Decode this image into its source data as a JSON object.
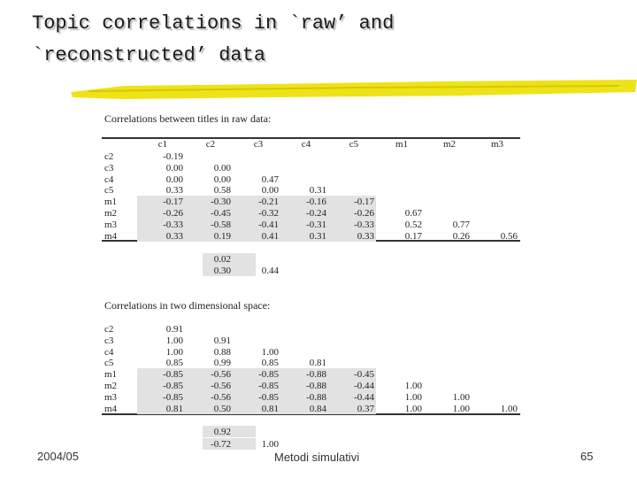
{
  "title": [
    "Topic correlations in `raw’ and",
    "`reconstructed’ data"
  ],
  "tables": [
    {
      "caption": "Correlations between titles in raw data:",
      "header": [
        "c1",
        "c2",
        "c3",
        "c4",
        "c5",
        "m1",
        "m2",
        "m3"
      ],
      "rows": [
        {
          "label": "c2",
          "cells": [
            "-0.19"
          ]
        },
        {
          "label": "c3",
          "cells": [
            "0.00",
            "0.00"
          ]
        },
        {
          "label": "c4",
          "cells": [
            "0.00",
            "0.00",
            "0.47"
          ]
        },
        {
          "label": "c5",
          "cells": [
            "0.33",
            "0.58",
            "0.00",
            "0.31"
          ]
        },
        {
          "label": "m1",
          "cells": [
            "-0.17",
            "-0.30",
            "-0.21",
            "-0.16",
            "-0.17"
          ]
        },
        {
          "label": "m2",
          "cells": [
            "-0.26",
            "-0.45",
            "-0.32",
            "-0.24",
            "-0.26",
            "0.67"
          ]
        },
        {
          "label": "m3",
          "cells": [
            "-0.33",
            "-0.58",
            "-0.41",
            "-0.31",
            "-0.33",
            "0.52",
            "0.77"
          ]
        },
        {
          "label": "m4",
          "cells": [
            "0.33",
            "0.19",
            "0.41",
            "0.31",
            "0.33",
            "0.17",
            "0.26",
            "0.56"
          ]
        }
      ],
      "extra": [
        [
          "0.02"
        ],
        [
          "0.30",
          "0.44"
        ]
      ]
    },
    {
      "caption": "Correlations in two dimensional space:",
      "header": [],
      "rows": [
        {
          "label": "c2",
          "cells": [
            "0.91"
          ]
        },
        {
          "label": "c3",
          "cells": [
            "1.00",
            "0.91"
          ]
        },
        {
          "label": "c4",
          "cells": [
            "1.00",
            "0.88",
            "1.00"
          ]
        },
        {
          "label": "c5",
          "cells": [
            "0.85",
            "0.99",
            "0.85",
            "0.81"
          ]
        },
        {
          "label": "m1",
          "cells": [
            "-0.85",
            "-0.56",
            "-0.85",
            "-0.88",
            "-0.45"
          ]
        },
        {
          "label": "m2",
          "cells": [
            "-0.85",
            "-0.56",
            "-0.85",
            "-0.88",
            "-0.44",
            "1.00"
          ]
        },
        {
          "label": "m3",
          "cells": [
            "-0.85",
            "-0.56",
            "-0.85",
            "-0.88",
            "-0.44",
            "1.00",
            "1.00"
          ]
        },
        {
          "label": "m4",
          "cells": [
            "0.81",
            "0.50",
            "0.81",
            "0.84",
            "0.37",
            "1.00",
            "1.00",
            "1.00"
          ]
        }
      ],
      "extra": [
        [
          "0.92"
        ],
        [
          "-0.72",
          "1.00"
        ]
      ]
    }
  ],
  "footer": {
    "date": "2004/05",
    "course": "Metodi simulativi",
    "page": "65"
  }
}
